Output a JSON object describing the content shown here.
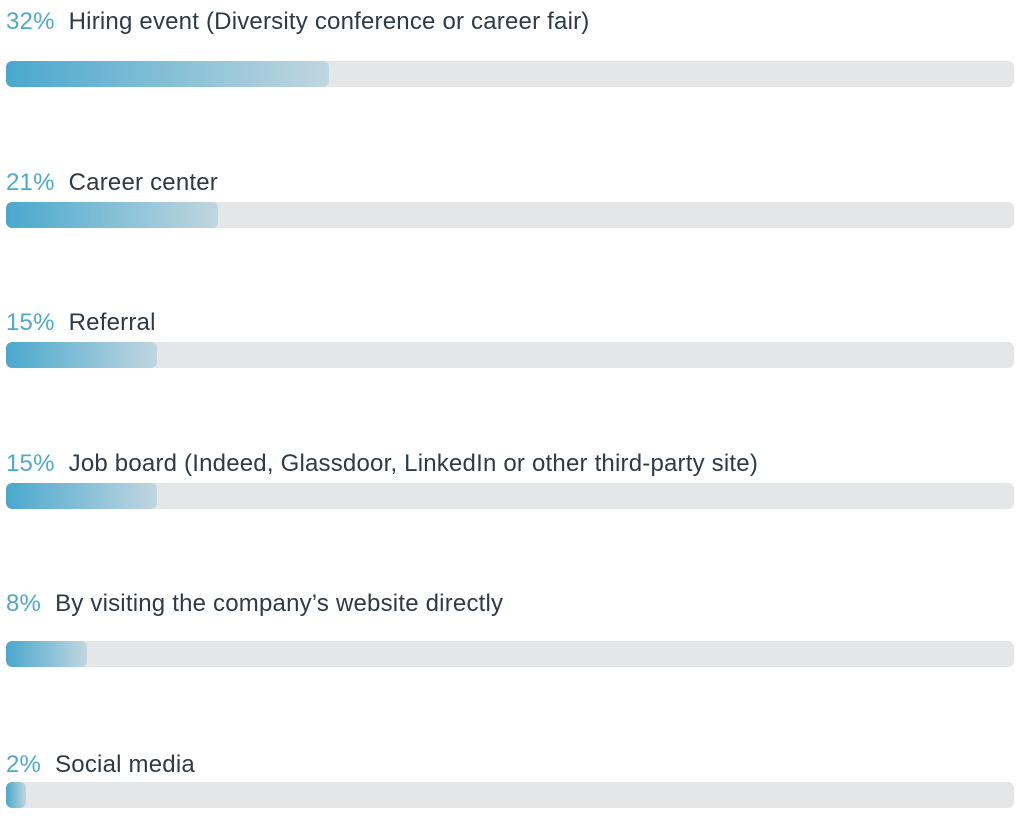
{
  "chart_data": {
    "type": "bar",
    "orientation": "horizontal",
    "title": "",
    "xlabel": "",
    "ylabel": "",
    "xlim": [
      0,
      100
    ],
    "unit": "%",
    "categories": [
      "Hiring event (Diversity conference or career fair)",
      "Career center",
      "Referral",
      "Job board (Indeed, Glassdoor, LinkedIn or other third-party site)",
      "By visiting the company’s website directly",
      "Social media"
    ],
    "values": [
      32,
      21,
      15,
      15,
      8,
      2
    ],
    "labels": [
      "32%",
      "21%",
      "15%",
      "15%",
      "8%",
      "2%"
    ],
    "colors": {
      "bar_start": "#4aa8cd",
      "bar_end": "#c0d6e0",
      "track": "#e5e6e8",
      "percent_text": "#4ea9cc",
      "label_text": "#2e3a45"
    }
  }
}
